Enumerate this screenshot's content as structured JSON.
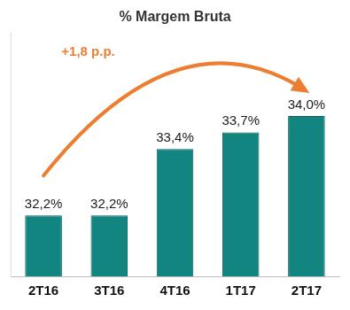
{
  "chart_data": {
    "type": "bar",
    "title": "% Margem Bruta",
    "categories": [
      "2T16",
      "3T16",
      "4T16",
      "1T17",
      "2T17"
    ],
    "values": [
      32.2,
      32.2,
      33.4,
      33.7,
      34.0
    ],
    "value_labels": [
      "32,2%",
      "32,2%",
      "33,4%",
      "33,7%",
      "34,0%"
    ],
    "color": "#138580",
    "ylim": [
      31.1,
      35.5
    ],
    "data_labels": true,
    "tick_labels": "x",
    "grid": false,
    "annotations": [
      {
        "text": "+1,8 p.p.",
        "from": "2T16",
        "to": "2T17",
        "color": "#ED7D31"
      }
    ]
  }
}
